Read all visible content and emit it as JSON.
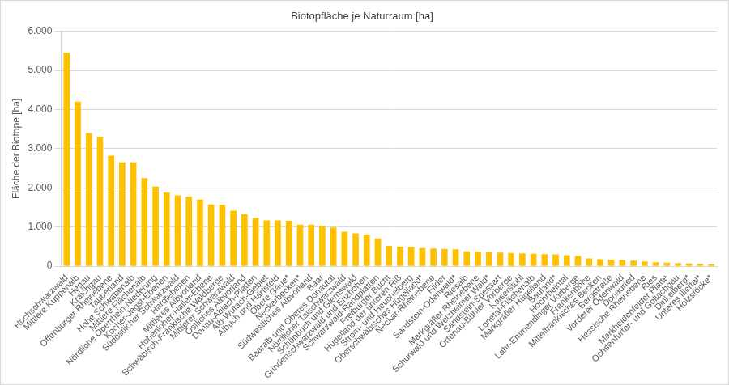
{
  "chart_data": {
    "type": "bar",
    "title": "Biotopfläche je Naturraum [ha]",
    "y_label": "Fläche der Biotope [ha]",
    "categories": [
      "Hochschwarzwald",
      "Mittlere Kuppenalb",
      "Hegau",
      "Kraichgau",
      "Offenburger Rheinebene",
      "Tauberland",
      "Hohe Schwabenalb",
      "Mittlere Flächenalb",
      "Nördliche Oberrhein-Niederung",
      "Kocher-Jagst-Ebenen",
      "Südöstlicher Schwarzwald",
      "Hardtebenen",
      "Mittleres Albvorland",
      "Hohenloher-Haller-Ebene",
      "Schwäbisch-Fränkische Waldberge",
      "Mittlerer Schwarzwald",
      "Östliches Albvorland",
      "Donau-Ablach-Platten",
      "Alb-Wutach-Gebiet",
      "Albuch und Härtsfeld",
      "Obere Gäue*",
      "Neckarbecken*",
      "Südwestliches Albvorland",
      "Baar",
      "Baaralb und Oberes Donautal",
      "Nördlicher Talschwarzwald",
      "Schönbuch und Glemswald",
      "Grindenschwarzwald und Enzhöhen",
      "Schwarzwald-Randplatten",
      "Freiburger Bucht",
      "Hügelland der unteren Riß",
      "Strom- und Heuchelberg",
      "Oberschwäbisches Hügelland*",
      "Neckar-Rheinebene",
      "Filder",
      "Sandstein-Odenwald*",
      "Riesalb",
      "Markgräfler Rheinebene",
      "Schurwald und Welzheimer Wald*",
      "Sandstein-Spessart",
      "Ortenau-Bühler Vorberge",
      "Kaiserstuhl",
      "Lonetal-Flächenalb",
      "Markgräfler Hügelland",
      "Bauland*",
      "Hochrheintal",
      "Lahr-Emmendinger Vorberge",
      "Frankenhöhe",
      "Mittelfränkisches Becken",
      "Bergstraße",
      "Vorderer Odenwald",
      "Donauried",
      "Hessische Rheinebene",
      "Ries",
      "Markheidenfelder Platte",
      "Ochsenfurter- und Gollachgau",
      "Dinkelberg*",
      "Unteres Illertal*",
      "Holzstöcke*"
    ],
    "values": [
      5450,
      4200,
      3400,
      3300,
      2820,
      2650,
      2650,
      2250,
      2030,
      1880,
      1810,
      1780,
      1700,
      1580,
      1570,
      1420,
      1330,
      1230,
      1170,
      1170,
      1160,
      1060,
      1060,
      1030,
      990,
      880,
      840,
      810,
      710,
      520,
      500,
      490,
      460,
      450,
      440,
      430,
      380,
      370,
      360,
      350,
      340,
      330,
      320,
      310,
      300,
      280,
      260,
      200,
      180,
      170,
      160,
      140,
      120,
      100,
      90,
      80,
      70,
      60,
      50
    ],
    "color": "#ffc000",
    "ylim": [
      0,
      6000
    ],
    "yticks": [
      0,
      {
        "value": 1000,
        "label": "1.000"
      },
      {
        "value": 2000,
        "label": "2.000"
      },
      {
        "value": 3000,
        "label": "3.000"
      },
      {
        "value": 4000,
        "label": "4.000"
      },
      {
        "value": 5000,
        "label": "5.000"
      },
      {
        "value": 6000,
        "label": "6.000"
      }
    ],
    "grid": true
  }
}
